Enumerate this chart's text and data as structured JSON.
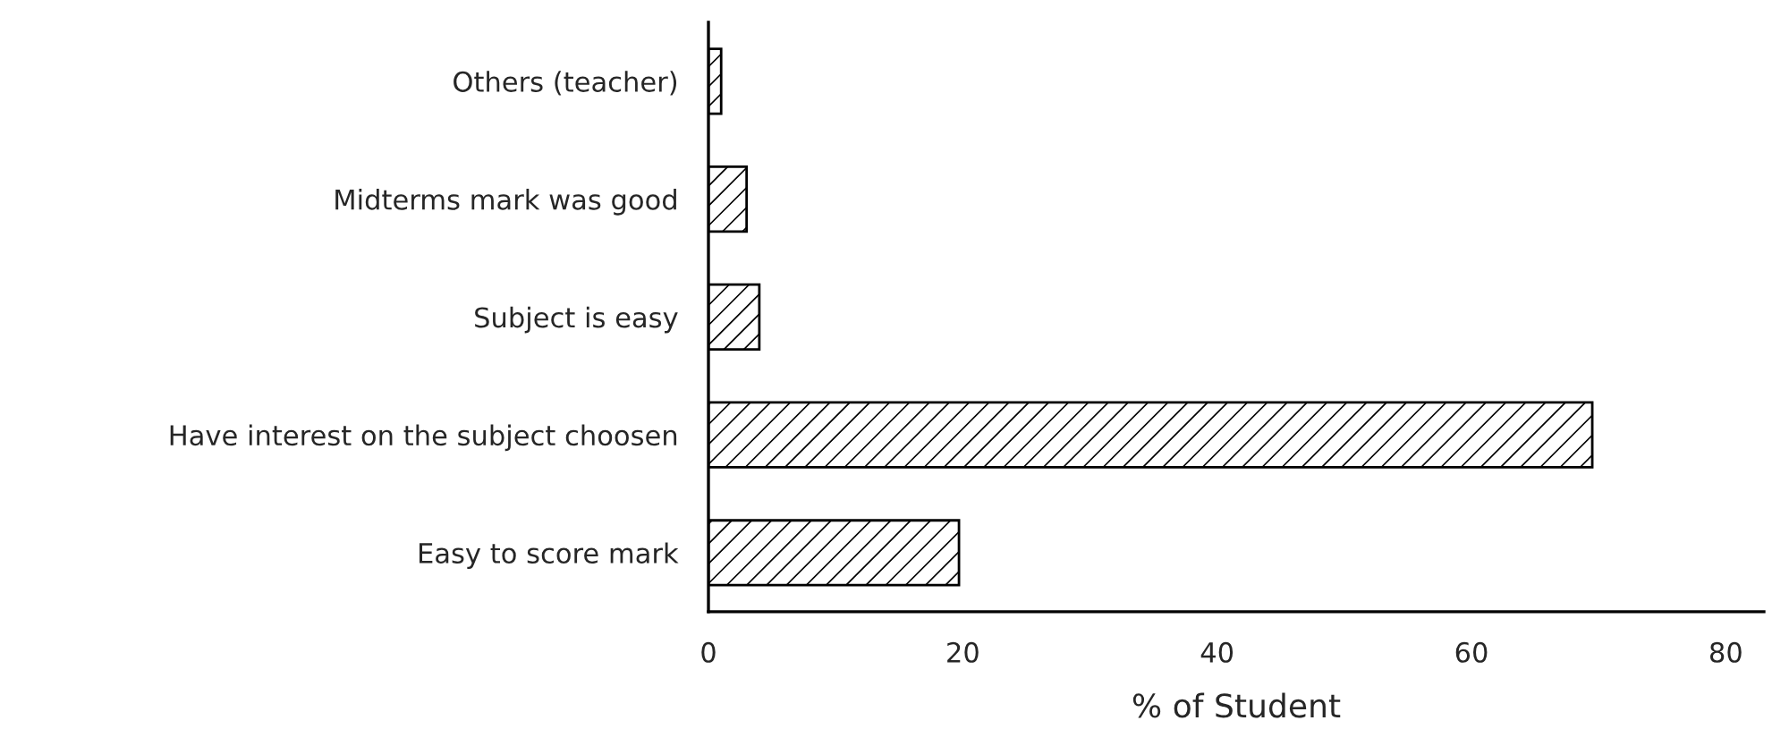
{
  "chart_data": {
    "type": "bar",
    "orientation": "horizontal",
    "xlabel": "% of Student",
    "categories": [
      "Others (teacher)",
      "Midterms mark was good",
      "Subject is easy",
      "Have interest on the subject choosen",
      "Easy to score mark"
    ],
    "values": [
      1,
      3,
      4,
      69.5,
      19.7
    ],
    "color": "#000000",
    "xlim": [
      0,
      83
    ],
    "xticks": [
      0,
      20,
      40,
      60,
      80
    ],
    "grid": false,
    "legend": false
  }
}
